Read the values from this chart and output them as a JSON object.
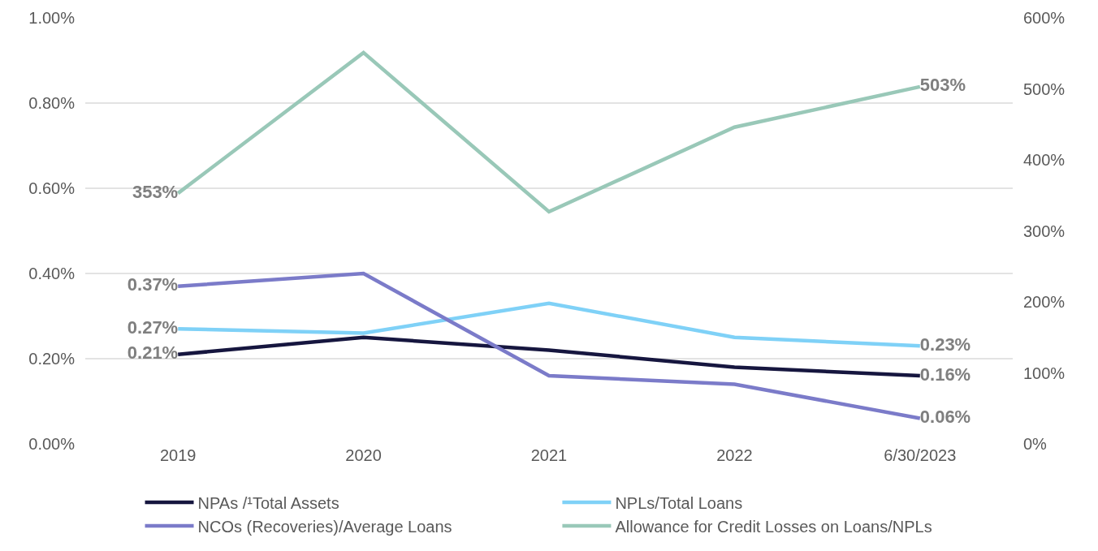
{
  "chart_data": {
    "type": "line",
    "categories": [
      "2019",
      "2020",
      "2021",
      "2022",
      "6/30/2023"
    ],
    "series": [
      {
        "name": "NPAs /¹Total Assets",
        "color": "#16163f",
        "values": [
          0.21,
          0.25,
          0.22,
          0.18,
          0.16
        ],
        "value_labels": [
          "0.21%",
          null,
          null,
          null,
          "0.16%"
        ]
      },
      {
        "name": "NPLs/Total Loans",
        "color": "#7fd1f7",
        "values": [
          0.27,
          0.26,
          0.33,
          0.25,
          0.23
        ],
        "value_labels": [
          "0.27%",
          null,
          null,
          null,
          "0.23%"
        ]
      },
      {
        "name": "NCOs (Recoveries)/Average Loans",
        "color": "#7b7bc9",
        "values": [
          0.37,
          0.4,
          0.16,
          0.14,
          0.06
        ],
        "value_labels": [
          "0.37%",
          null,
          null,
          null,
          "0.06%"
        ]
      },
      {
        "name": "Allowance for Credit Losses on Loans/NPLs",
        "color": "#99c8b8",
        "axis": "y2",
        "values": [
          353,
          551,
          327,
          446,
          503
        ],
        "value_labels": [
          "353%",
          null,
          null,
          null,
          "503%"
        ]
      }
    ],
    "ylim": [
      0,
      1
    ],
    "yticks": [
      {
        "value": 0,
        "label": "0.00%"
      },
      {
        "value": 0.2,
        "label": "0.20%"
      },
      {
        "value": 0.4,
        "label": "0.40%"
      },
      {
        "value": 0.6,
        "label": "0.60%"
      },
      {
        "value": 0.8,
        "label": "0.80%"
      },
      {
        "value": 1,
        "label": "1.00%"
      }
    ],
    "y2lim": [
      0,
      600
    ],
    "y2ticks": [
      {
        "value": 0,
        "label": "0%"
      },
      {
        "value": 100,
        "label": "100%"
      },
      {
        "value": 200,
        "label": "200%"
      },
      {
        "value": 300,
        "label": "300%"
      },
      {
        "value": 400,
        "label": "400%"
      },
      {
        "value": 500,
        "label": "500%"
      },
      {
        "value": 600,
        "label": "600%"
      }
    ],
    "grid": "y",
    "legend": "bottom",
    "marker": "none",
    "line_style": "solid"
  }
}
